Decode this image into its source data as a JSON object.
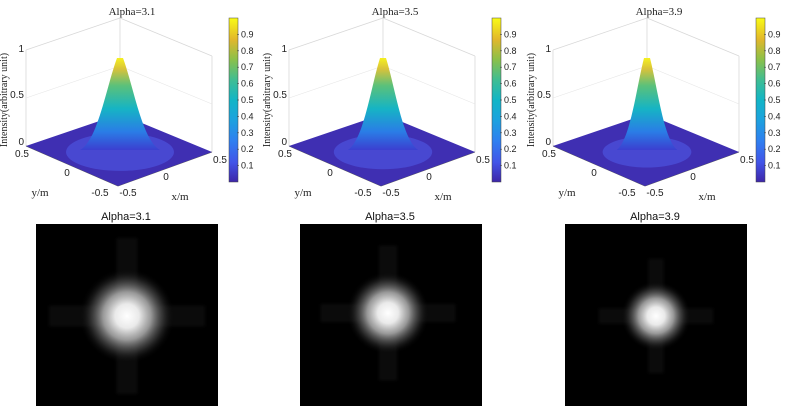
{
  "chart_data": [
    {
      "type": "surface3d",
      "title": "Alpha=3.1",
      "alpha": 3.1,
      "zlabel": "Intensity(arbitrary unit)",
      "xlabel": "x/m",
      "ylabel": "y/m",
      "x_ticks": [
        "-0.5",
        "0",
        "0.5"
      ],
      "y_ticks": [
        "-0.5",
        "0",
        "0.5"
      ],
      "z_ticks": [
        "0",
        "0.5",
        "1"
      ],
      "xlim": [
        -0.5,
        0.5
      ],
      "ylim": [
        -0.5,
        0.5
      ],
      "zlim": [
        0,
        1
      ],
      "peak_intensity": 1.0,
      "colorbar_ticks": [
        "0.1",
        "0.2",
        "0.3",
        "0.4",
        "0.5",
        "0.6",
        "0.7",
        "0.8",
        "0.9"
      ],
      "colormap": "parula"
    },
    {
      "type": "surface3d",
      "title": "Alpha=3.5",
      "alpha": 3.5,
      "zlabel": "Intensity(arbitrary unit)",
      "xlabel": "x/m",
      "ylabel": "y/m",
      "x_ticks": [
        "-0.5",
        "0",
        "0.5"
      ],
      "y_ticks": [
        "-0.5",
        "0",
        "0.5"
      ],
      "z_ticks": [
        "0",
        "0.5",
        "1"
      ],
      "xlim": [
        -0.5,
        0.5
      ],
      "ylim": [
        -0.5,
        0.5
      ],
      "zlim": [
        0,
        1
      ],
      "peak_intensity": 1.0,
      "colorbar_ticks": [
        "0.1",
        "0.2",
        "0.3",
        "0.4",
        "0.5",
        "0.6",
        "0.7",
        "0.8",
        "0.9"
      ],
      "colormap": "parula"
    },
    {
      "type": "surface3d",
      "title": "Alpha=3.9",
      "alpha": 3.9,
      "zlabel": "Intensity(arbitrary unit)",
      "xlabel": "x/m",
      "ylabel": "y/m",
      "x_ticks": [
        "-0.5",
        "0",
        "0.5"
      ],
      "y_ticks": [
        "-0.5",
        "0",
        "0.5"
      ],
      "z_ticks": [
        "0",
        "0.5",
        "1"
      ],
      "xlim": [
        -0.5,
        0.5
      ],
      "ylim": [
        -0.5,
        0.5
      ],
      "zlim": [
        0,
        1
      ],
      "peak_intensity": 1.0,
      "colorbar_ticks": [
        "0.1",
        "0.2",
        "0.3",
        "0.4",
        "0.5",
        "0.6",
        "0.7",
        "0.8",
        "0.9"
      ],
      "colormap": "parula"
    },
    {
      "type": "heatmap",
      "title": "Alpha=3.1",
      "alpha": 3.1,
      "colormap": "gray",
      "spot_width": 0.22
    },
    {
      "type": "heatmap",
      "title": "Alpha=3.5",
      "alpha": 3.5,
      "colormap": "gray",
      "spot_width": 0.18
    },
    {
      "type": "heatmap",
      "title": "Alpha=3.9",
      "alpha": 3.9,
      "colormap": "gray",
      "spot_width": 0.15
    }
  ],
  "colors": {
    "parula_low": "#3e26a8",
    "parula_mid": "#2eb7a4",
    "parula_high": "#f9fb15",
    "background": "#ffffff",
    "image_bg": "#000000"
  }
}
